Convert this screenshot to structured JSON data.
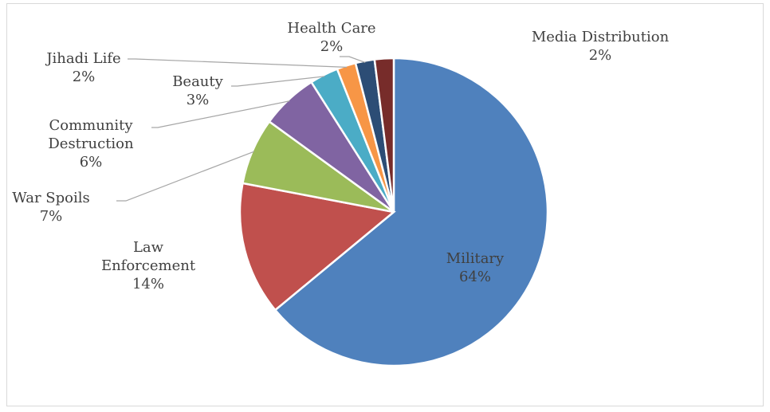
{
  "chart_data": {
    "type": "pie",
    "title": "",
    "start_angle_deg": 0,
    "direction": "clockwise",
    "slices": [
      {
        "label": "Military",
        "label_lines": [
          "Military"
        ],
        "value": 64,
        "value_label": "64%",
        "color": "#4f81bd"
      },
      {
        "label": "Law Enforcement",
        "label_lines": [
          "Law",
          "Enforcement"
        ],
        "value": 14,
        "value_label": "14%",
        "color": "#c0504d"
      },
      {
        "label": "War Spoils",
        "label_lines": [
          "War Spoils"
        ],
        "value": 7,
        "value_label": "7%",
        "color": "#9bbb59"
      },
      {
        "label": "Community Destruction",
        "label_lines": [
          "Community",
          "Destruction"
        ],
        "value": 6,
        "value_label": "6%",
        "color": "#8064a2"
      },
      {
        "label": "Beauty",
        "label_lines": [
          "Beauty"
        ],
        "value": 3,
        "value_label": "3%",
        "color": "#4bacc6"
      },
      {
        "label": "Jihadi Life",
        "label_lines": [
          "Jihadi Life"
        ],
        "value": 2,
        "value_label": "2%",
        "color": "#f79646"
      },
      {
        "label": "Health Care",
        "label_lines": [
          "Health Care"
        ],
        "value": 2,
        "value_label": "2%",
        "color": "#2c4d75"
      },
      {
        "label": "Media Distribution",
        "label_lines": [
          "Media Distribution"
        ],
        "value": 2,
        "value_label": "2%",
        "color": "#772c2a"
      }
    ]
  }
}
